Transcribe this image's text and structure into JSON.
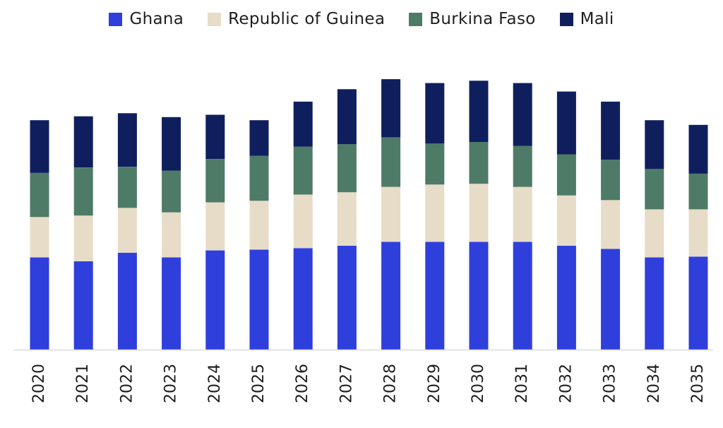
{
  "chart_data": {
    "type": "bar",
    "stacked": true,
    "categories": [
      "2020",
      "2021",
      "2022",
      "2023",
      "2024",
      "2025",
      "2026",
      "2027",
      "2028",
      "2029",
      "2030",
      "2031",
      "2032",
      "2033",
      "2034",
      "2035"
    ],
    "series": [
      {
        "name": "Ghana",
        "color": "#2f3fdc",
        "values": [
          119,
          114,
          125,
          119,
          128,
          129,
          131,
          134,
          139,
          139,
          139,
          139,
          134,
          130,
          119,
          120
        ]
      },
      {
        "name": "Republic of Guinea",
        "color": "#e7dcc7",
        "values": [
          52,
          59,
          58,
          58,
          62,
          63,
          69,
          69,
          71,
          74,
          75,
          71,
          65,
          63,
          62,
          61
        ]
      },
      {
        "name": "Burkina Faso",
        "color": "#4e7b67",
        "values": [
          57,
          62,
          53,
          54,
          56,
          58,
          62,
          62,
          64,
          53,
          54,
          53,
          53,
          52,
          52,
          46
        ]
      },
      {
        "name": "Mali",
        "color": "#0f1f5e",
        "values": [
          68,
          66,
          69,
          69,
          57,
          46,
          58,
          71,
          75,
          78,
          79,
          81,
          81,
          75,
          63,
          63
        ]
      }
    ],
    "legend_position": "top-center",
    "grid": false,
    "ylim": [
      0,
      360
    ]
  }
}
